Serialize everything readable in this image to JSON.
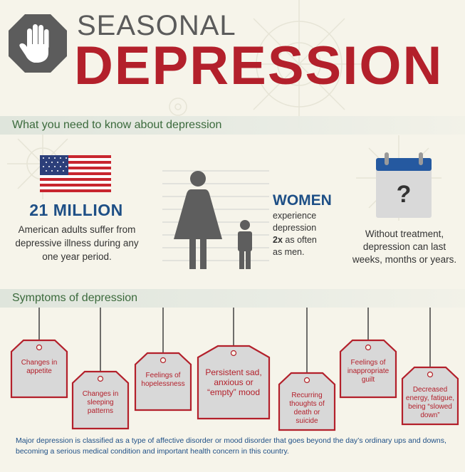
{
  "header": {
    "title_top": "SEASONAL",
    "title_main": "DEPRESSION",
    "icon": "stop-hand-icon"
  },
  "sections": {
    "facts": "What you need to know about depression",
    "symptoms": "Symptoms of depression"
  },
  "stats": {
    "count": "21 MILLION",
    "count_desc": "American adults suffer from depressive illness during any one year period.",
    "women_heading": "WOMEN",
    "women_line1": "experience",
    "women_line2": "depression",
    "women_factor": "2x",
    "women_line3": "as often",
    "women_line4": "as men.",
    "duration_desc": "Without treatment, depression can last weeks, months or years.",
    "calendar_symbol": "?"
  },
  "symptoms": [
    "Changes in appetite",
    "Changes in sleeping patterns",
    "Feelings of hopelessness",
    "Persistent sad, anxious or “empty” mood",
    "Recurring thoughts of death or suicide",
    "Feelings of inappropriate guilt",
    "Decreased energy, fatigue, being “slowed down”"
  ],
  "footnote": "Major depression is classified as a type of affective disorder or mood disorder that goes beyond the day’s ordinary ups and downs, becoming a serious medical condition and important health concern in this country.",
  "colors": {
    "accent_red": "#b3202b",
    "accent_blue": "#1e4f86",
    "section_green": "#3b6a3c",
    "figure_gray": "#5e5e5e"
  }
}
